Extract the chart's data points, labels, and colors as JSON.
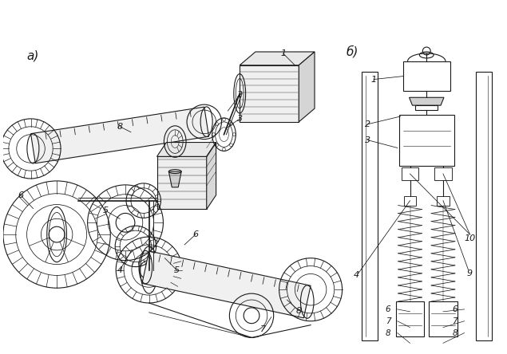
{
  "bg_color": "#ffffff",
  "line_color": "#1a1a1a",
  "label_a": "a)",
  "label_b": "б)",
  "fig_width": 6.35,
  "fig_height": 4.44,
  "dpi": 100,
  "font_size": 8,
  "lw_main": 0.8,
  "lw_thin": 0.5,
  "lw_thick": 1.2
}
